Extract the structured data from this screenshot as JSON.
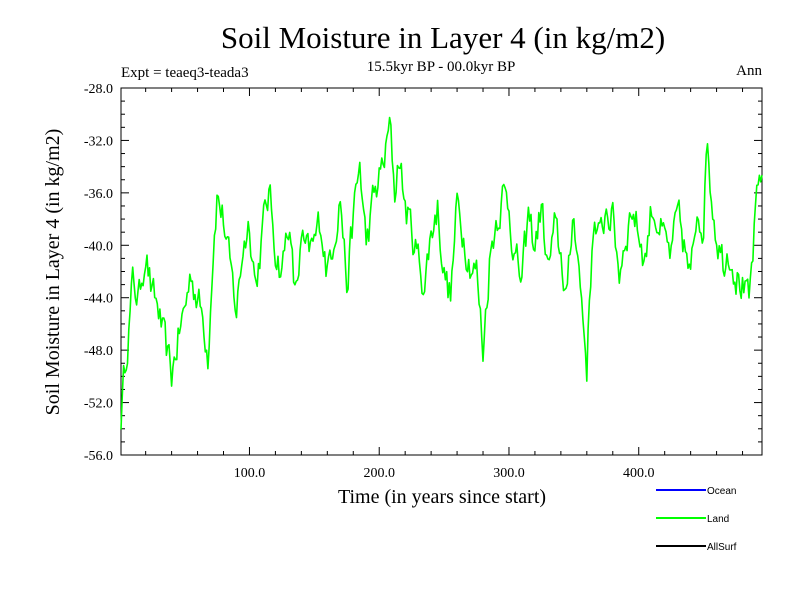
{
  "chart_data": {
    "type": "line",
    "title": "Soil Moisture in Layer 4 (in kg/m2)",
    "subtitle": "15.5kyr BP - 00.0kyr BP",
    "experiment_label": "Expt = teaeq3-teada3",
    "season_label": "Ann",
    "xlabel": "Time (in years since start)",
    "ylabel": "Soil Moisture in Layer 4 (in kg/m2)",
    "xlim": [
      1,
      495
    ],
    "ylim": [
      -56,
      -28
    ],
    "x_ticks": [
      100,
      200,
      300,
      400
    ],
    "x_tick_labels": [
      "100.0",
      "200.0",
      "300.0",
      "400.0"
    ],
    "y_ticks": [
      -56,
      -52,
      -48,
      -44,
      -40,
      -36,
      -32,
      -28
    ],
    "y_tick_labels": [
      "-56.0",
      "-52.0",
      "-48.0",
      "-44.0",
      "-40.0",
      "-36.0",
      "-32.0",
      "-28.0"
    ],
    "grid": false,
    "legend": [
      {
        "name": "Ocean",
        "color": "#0000ff"
      },
      {
        "name": "Land",
        "color": "#00ff00"
      },
      {
        "name": "AllSurf",
        "color": "#000000"
      }
    ],
    "series": [
      {
        "name": "Land",
        "color": "#00ff00",
        "x": [
          1,
          5,
          10,
          15,
          20,
          25,
          30,
          35,
          40,
          45,
          50,
          55,
          60,
          65,
          68,
          72,
          75,
          80,
          85,
          90,
          95,
          100,
          105,
          110,
          115,
          120,
          125,
          130,
          135,
          140,
          145,
          150,
          155,
          160,
          165,
          170,
          175,
          180,
          185,
          190,
          195,
          200,
          205,
          208,
          212,
          215,
          220,
          225,
          230,
          235,
          240,
          245,
          250,
          255,
          260,
          265,
          270,
          275,
          280,
          285,
          290,
          295,
          300,
          305,
          310,
          315,
          320,
          325,
          330,
          335,
          340,
          345,
          350,
          355,
          360,
          365,
          370,
          375,
          380,
          385,
          390,
          395,
          400,
          405,
          410,
          415,
          420,
          425,
          430,
          435,
          440,
          445,
          450,
          453,
          455,
          460,
          465,
          470,
          475,
          480,
          485,
          490,
          495
        ],
        "values": [
          -53,
          -48,
          -43,
          -44,
          -40,
          -44,
          -45,
          -48,
          -50,
          -47,
          -45,
          -42,
          -44,
          -46,
          -48,
          -40,
          -36,
          -38,
          -42,
          -45,
          -40,
          -38,
          -43,
          -39,
          -36,
          -40,
          -42,
          -38,
          -44,
          -40,
          -41,
          -40,
          -38,
          -42,
          -39,
          -36,
          -43,
          -38,
          -34,
          -40,
          -37,
          -35,
          -33,
          -31,
          -36,
          -33,
          -37,
          -39,
          -41,
          -43,
          -39,
          -37,
          -42,
          -44,
          -37,
          -39,
          -41,
          -42,
          -48,
          -41,
          -38,
          -36,
          -37,
          -41,
          -43,
          -38,
          -40,
          -37,
          -42,
          -39,
          -41,
          -44,
          -37,
          -43,
          -49,
          -38,
          -40,
          -37,
          -38,
          -42,
          -39,
          -37,
          -39,
          -41,
          -37,
          -38,
          -40,
          -41,
          -38,
          -40,
          -43,
          -37,
          -38,
          -31.5,
          -35,
          -39,
          -41,
          -40,
          -42,
          -43,
          -45,
          -38,
          -34
        ]
      }
    ]
  }
}
